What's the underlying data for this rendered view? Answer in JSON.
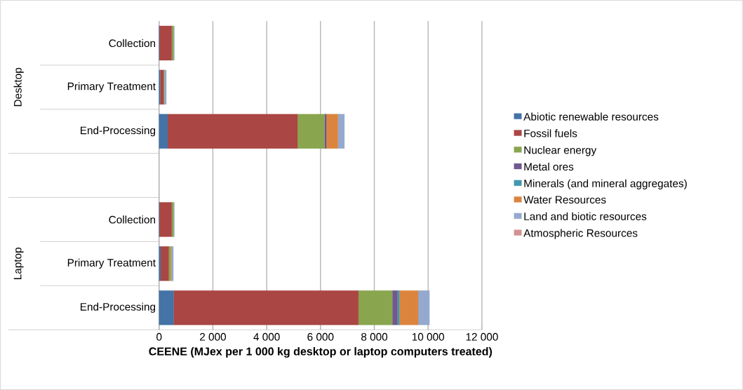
{
  "chart_data": {
    "type": "bar",
    "orientation": "horizontal",
    "stacked": true,
    "xlabel": "CEENE (MJex per 1 000 kg desktop or laptop computers treated)",
    "categories": [
      "Collection",
      "Primary Treatment",
      "End-Processing",
      null,
      "Collection",
      "Primary Treatment",
      "End-Processing"
    ],
    "annotations": [
      "Desktop",
      "Laptop"
    ],
    "series": [
      {
        "name": "Abiotic renewable resources",
        "color": "#4572a7",
        "values": [
          10,
          40,
          320,
          null,
          10,
          60,
          540
        ]
      },
      {
        "name": "Fossil fuels",
        "color": "#aa4643",
        "values": [
          460,
          130,
          4830,
          null,
          460,
          300,
          6870
        ]
      },
      {
        "name": "Nuclear energy",
        "color": "#89a54e",
        "values": [
          70,
          30,
          1000,
          null,
          70,
          80,
          1260
        ]
      },
      {
        "name": "Metal ores",
        "color": "#71588f",
        "values": [
          0,
          0,
          70,
          null,
          0,
          0,
          190
        ]
      },
      {
        "name": "Minerals (and mineral aggregates)",
        "color": "#4198af",
        "values": [
          0,
          0,
          0,
          null,
          0,
          0,
          70
        ]
      },
      {
        "name": "Water Resources",
        "color": "#db843d",
        "values": [
          0,
          0,
          430,
          null,
          0,
          20,
          700
        ]
      },
      {
        "name": "Land and biotic resources",
        "color": "#93a9cf",
        "values": [
          30,
          70,
          240,
          null,
          30,
          70,
          420
        ]
      },
      {
        "name": "Atmospheric Resources",
        "color": "#d19392",
        "values": [
          0,
          0,
          0,
          null,
          0,
          0,
          0
        ]
      }
    ],
    "xlim": [
      0,
      12000
    ],
    "xticks": [
      0,
      {
        "value": 2000,
        "label": "2 000"
      },
      {
        "value": 4000,
        "label": "4 000"
      },
      {
        "value": 6000,
        "label": "6 000"
      },
      {
        "value": 8000,
        "label": "8 000"
      },
      {
        "value": 10000,
        "label": "10 000"
      },
      {
        "value": 12000,
        "label": "12 000"
      }
    ],
    "grid": "x",
    "legend": "right"
  }
}
